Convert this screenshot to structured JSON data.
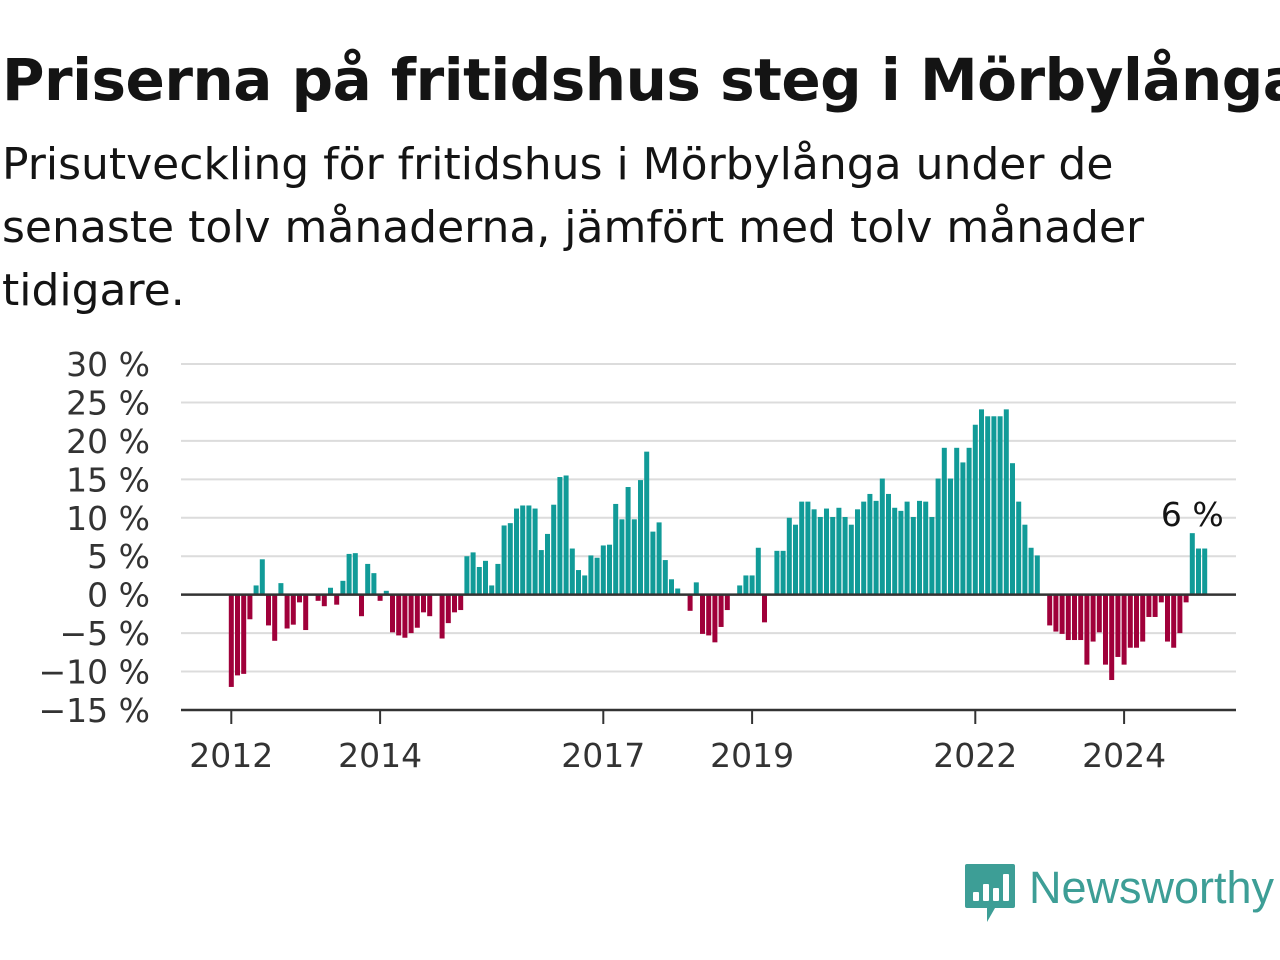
{
  "title": "Priserna på fritidshus steg i Mörbylånga",
  "subtitle": "Prisutveckling för fritidshus i Mörbylånga under de senaste tolv månaderna, jämfört med tolv månader tidigare.",
  "brand": {
    "name": "Newsworthy",
    "color": "#3d9e96",
    "icon": "newsworthy-logo-icon"
  },
  "colors": {
    "positive": "#119b98",
    "negative": "#a0003a",
    "grid": "#dcdcdc",
    "zero_line": "#333333",
    "axis": "#333333"
  },
  "chart_data": {
    "type": "bar",
    "title": "",
    "xlabel": "",
    "ylabel": "",
    "ylim": [
      -15,
      30
    ],
    "yticks": [
      30,
      25,
      20,
      15,
      10,
      5,
      0,
      -5,
      -10,
      -15
    ],
    "ytick_labels": [
      "30 %",
      "25 %",
      "20 %",
      "15 %",
      "10 %",
      "5 %",
      "0 %",
      "−5 %",
      "−10 %",
      "−15 %"
    ],
    "xticks": [
      {
        "label": "2012",
        "date": "2012-01"
      },
      {
        "label": "2014",
        "date": "2014-01"
      },
      {
        "label": "2017",
        "date": "2017-01"
      },
      {
        "label": "2019",
        "date": "2019-01"
      },
      {
        "label": "2022",
        "date": "2022-01"
      },
      {
        "label": "2024",
        "date": "2024-01"
      }
    ],
    "grid": true,
    "annotation": {
      "text": "6 %",
      "date": "2024-12"
    },
    "series": [
      {
        "start": "2012-01",
        "frequency": "monthly",
        "values": [
          -12,
          -10.5,
          -10.3,
          -3.2,
          1.2,
          4.6,
          -4,
          -6,
          1.5,
          -4.4,
          -3.9,
          -1,
          -4.6,
          0,
          -0.8,
          -1.5,
          0.9,
          -1.3,
          1.8,
          5.3,
          5.4,
          -2.8,
          4,
          2.8,
          -0.8,
          0.5,
          -4.9,
          -5.3,
          -5.6,
          -5,
          -4.3,
          -2.3,
          -2.8,
          0,
          -5.7,
          -3.7,
          -2.3,
          -2,
          5,
          5.5,
          3.6,
          4.4,
          1.2,
          4,
          9,
          9.3,
          11.2,
          11.6,
          11.6,
          11.2,
          5.8,
          7.9,
          11.7,
          15.3,
          15.5,
          6,
          3.2,
          2.5,
          5.1,
          4.8,
          6.4,
          6.5,
          11.8,
          9.8,
          14,
          9.8,
          14.9,
          18.6,
          8.2,
          9.4,
          4.5,
          2,
          0.8,
          0,
          -2.1,
          1.6,
          -5.1,
          -5.3,
          -6.2,
          -4.2,
          -2,
          0,
          1.2,
          2.5,
          2.5,
          6.1,
          -3.6,
          0,
          5.7,
          5.7,
          10,
          9.1,
          12.1,
          12.1,
          11.1,
          10.1,
          11.2,
          10.1,
          11.3,
          10.1,
          9.1,
          11.1,
          12.1,
          13.1,
          12.2,
          15.1,
          13.1,
          11.3,
          10.9,
          12.1,
          10.1,
          12.2,
          12.1,
          10.1,
          15.1,
          19.1,
          15.1,
          19.1,
          17.2,
          19.1,
          22.1,
          24.1,
          23.2,
          23.2,
          23.2,
          24.1,
          17.1,
          12.1,
          9.1,
          6.1,
          5.1,
          0,
          -4,
          -4.8,
          -5.1,
          -5.9,
          -5.9,
          -5.9,
          -9.1,
          -6.1,
          -4.9,
          -9.1,
          -11.1,
          -8.1,
          -9.1,
          -6.9,
          -6.9,
          -6.1,
          -2.9,
          -2.9,
          -1,
          -6.1,
          -6.9,
          -5,
          -1,
          8,
          6,
          6
        ]
      }
    ]
  }
}
